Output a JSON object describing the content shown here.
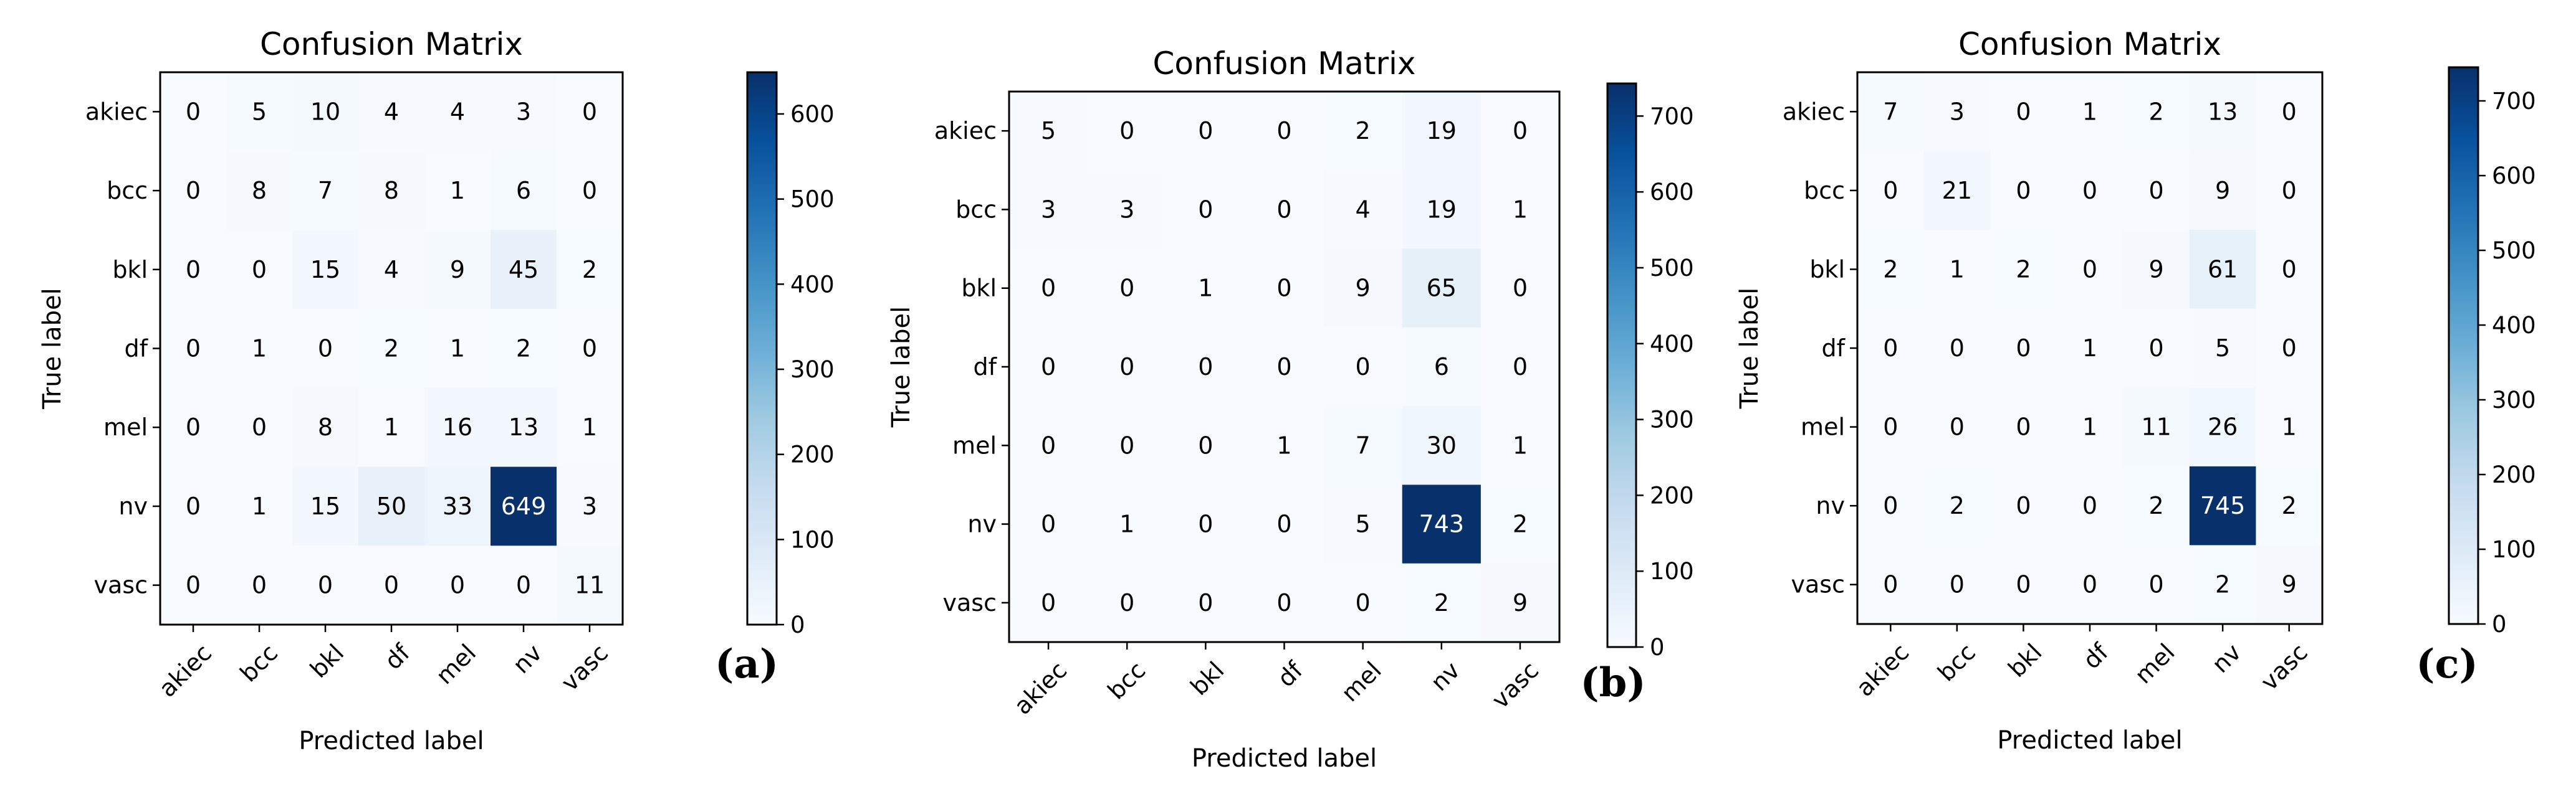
{
  "chart_data": [
    {
      "type": "heatmap",
      "title": "Confusion Matrix",
      "panel_label": "(a)",
      "xlabel": "Predicted label",
      "ylabel": "True label",
      "x_categories": [
        "akiec",
        "bcc",
        "bkl",
        "df",
        "mel",
        "nv",
        "vasc"
      ],
      "y_categories": [
        "akiec",
        "bcc",
        "bkl",
        "df",
        "mel",
        "nv",
        "vasc"
      ],
      "values": [
        [
          0,
          5,
          10,
          4,
          4,
          3,
          0
        ],
        [
          0,
          8,
          7,
          8,
          1,
          6,
          0
        ],
        [
          0,
          0,
          15,
          4,
          9,
          45,
          2
        ],
        [
          0,
          1,
          0,
          2,
          1,
          2,
          0
        ],
        [
          0,
          0,
          8,
          1,
          16,
          13,
          1
        ],
        [
          0,
          1,
          15,
          50,
          33,
          649,
          3
        ],
        [
          0,
          0,
          0,
          0,
          0,
          0,
          11
        ]
      ],
      "colorbar": {
        "min": 0,
        "max": 649,
        "ticks": [
          0,
          100,
          200,
          300,
          400,
          500,
          600
        ]
      },
      "colormap": [
        "#f7fbff",
        "#deebf7",
        "#c6dbef",
        "#9ecae1",
        "#6baed6",
        "#4292c6",
        "#2171b5",
        "#08519c",
        "#08306b"
      ]
    },
    {
      "type": "heatmap",
      "title": "Confusion Matrix",
      "panel_label": "(b)",
      "xlabel": "Predicted label",
      "ylabel": "True label",
      "x_categories": [
        "akiec",
        "bcc",
        "bkl",
        "df",
        "mel",
        "nv",
        "vasc"
      ],
      "y_categories": [
        "akiec",
        "bcc",
        "bkl",
        "df",
        "mel",
        "nv",
        "vasc"
      ],
      "values": [
        [
          5,
          0,
          0,
          0,
          2,
          19,
          0
        ],
        [
          3,
          3,
          0,
          0,
          4,
          19,
          1
        ],
        [
          0,
          0,
          1,
          0,
          9,
          65,
          0
        ],
        [
          0,
          0,
          0,
          0,
          0,
          6,
          0
        ],
        [
          0,
          0,
          0,
          1,
          7,
          30,
          1
        ],
        [
          0,
          1,
          0,
          0,
          5,
          743,
          2
        ],
        [
          0,
          0,
          0,
          0,
          0,
          2,
          9
        ]
      ],
      "colorbar": {
        "min": 0,
        "max": 743,
        "ticks": [
          0,
          100,
          200,
          300,
          400,
          500,
          600,
          700
        ]
      },
      "colormap": [
        "#f7fbff",
        "#deebf7",
        "#c6dbef",
        "#9ecae1",
        "#6baed6",
        "#4292c6",
        "#2171b5",
        "#08519c",
        "#08306b"
      ]
    },
    {
      "type": "heatmap",
      "title": "Confusion Matrix",
      "panel_label": "(c)",
      "xlabel": "Predicted label",
      "ylabel": "True label",
      "x_categories": [
        "akiec",
        "bcc",
        "bkl",
        "df",
        "mel",
        "nv",
        "vasc"
      ],
      "y_categories": [
        "akiec",
        "bcc",
        "bkl",
        "df",
        "mel",
        "nv",
        "vasc"
      ],
      "values": [
        [
          7,
          3,
          0,
          1,
          2,
          13,
          0
        ],
        [
          0,
          21,
          0,
          0,
          0,
          9,
          0
        ],
        [
          2,
          1,
          2,
          0,
          9,
          61,
          0
        ],
        [
          0,
          0,
          0,
          1,
          0,
          5,
          0
        ],
        [
          0,
          0,
          0,
          1,
          11,
          26,
          1
        ],
        [
          0,
          2,
          0,
          0,
          2,
          745,
          2
        ],
        [
          0,
          0,
          0,
          0,
          0,
          2,
          9
        ]
      ],
      "colorbar": {
        "min": 0,
        "max": 745,
        "ticks": [
          0,
          100,
          200,
          300,
          400,
          500,
          600,
          700
        ]
      },
      "colormap": [
        "#f7fbff",
        "#deebf7",
        "#c6dbef",
        "#9ecae1",
        "#6baed6",
        "#4292c6",
        "#2171b5",
        "#08519c",
        "#08306b"
      ]
    }
  ]
}
